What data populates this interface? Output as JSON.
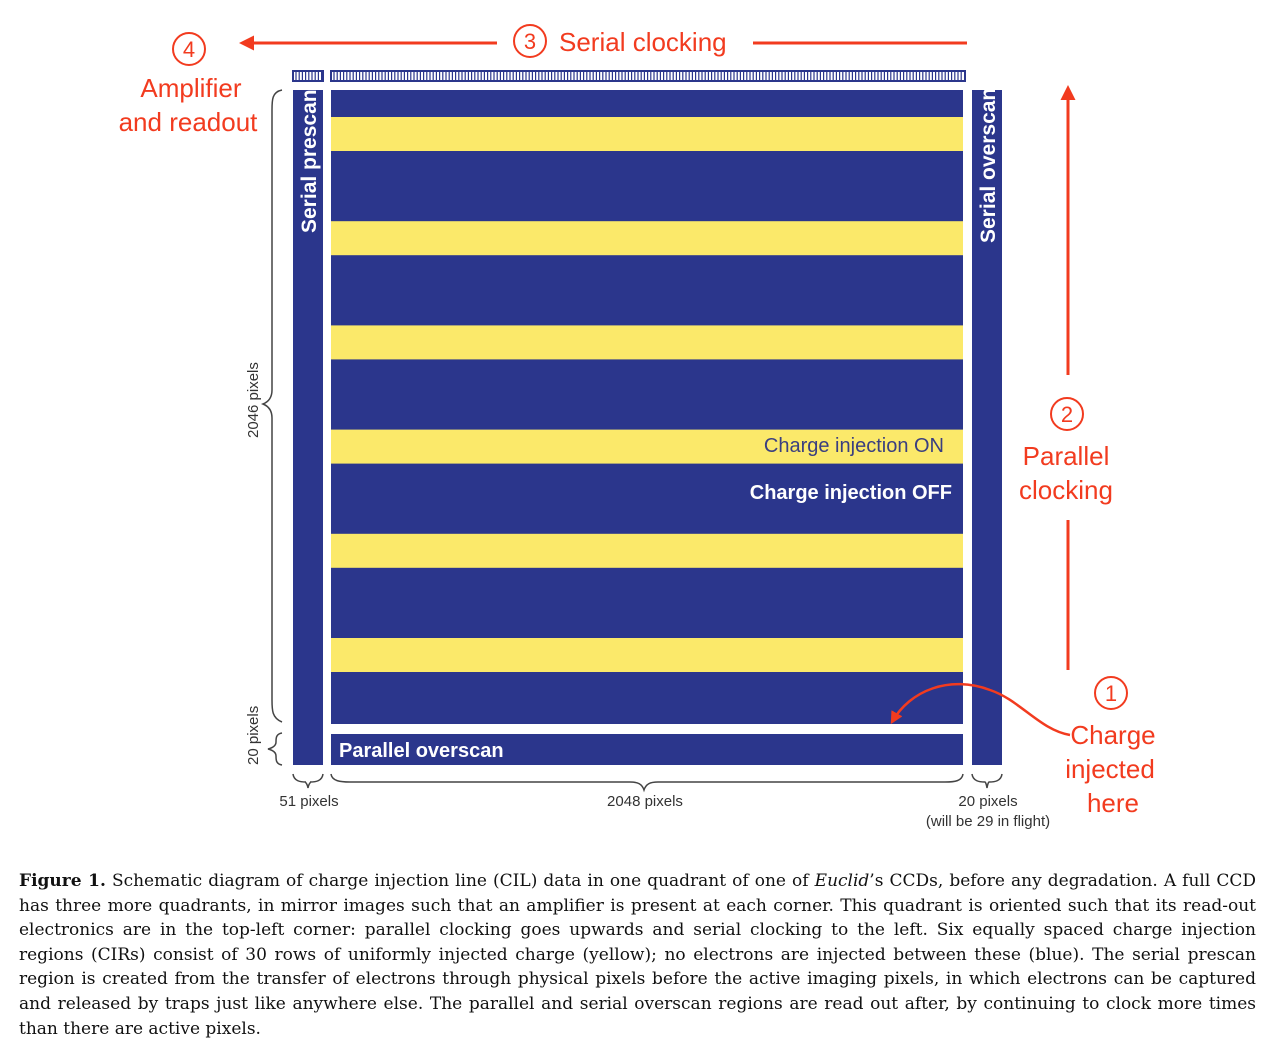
{
  "colors": {
    "blue": "#2b368c",
    "yellow": "#fbe96a",
    "red": "#f23b1f",
    "gray": "#444444"
  },
  "figure": {
    "steps": {
      "s1": {
        "num": "1",
        "label_line1": "Charge",
        "label_line2": "injected",
        "label_line3": "here"
      },
      "s2": {
        "num": "2",
        "label_line1": "Parallel",
        "label_line2": "clocking"
      },
      "s3": {
        "num": "3",
        "label": "Serial clocking"
      },
      "s4": {
        "num": "4",
        "label_line1": "Amplifier",
        "label_line2": "and readout"
      }
    },
    "labels": {
      "serial_prescan": "Serial prescan",
      "serial_overscan": "Serial overscan",
      "parallel_overscan": "Parallel overscan",
      "charge_on": "Charge injection ON",
      "charge_off": "Charge injection OFF"
    },
    "dimensions": {
      "rows_active": "2046 pixels",
      "rows_overscan": "20 pixels",
      "cols_prescan": "51 pixels",
      "cols_active": "2048 pixels",
      "cols_overscan": "20 pixels",
      "cols_overscan_note": "(will be 29 in flight)"
    },
    "injection_regions": 6
  },
  "caption": {
    "label": "Figure 1.",
    "t1": " Schematic diagram of charge injection line (CIL) data in one quadrant of one of ",
    "italic": "Euclid",
    "t2": "’s CCDs, before any degradation. A full CCD has three more quadrants, in mirror images such that an amplifier is present at each corner. This quadrant is oriented such that its read-out electronics are in the top-left corner: parallel clocking goes upwards and serial clocking to the left. Six equally spaced charge injection regions (CIRs) consist of 30 rows of uniformly injected charge (yellow); no electrons are injected between these (blue). The serial prescan region is created from the transfer of electrons through physical pixels before the active imaging pixels, in which electrons can be captured and released by traps just like anywhere else. The parallel and serial overscan regions are read out after, by continuing to clock more times than there are active pixels."
  }
}
